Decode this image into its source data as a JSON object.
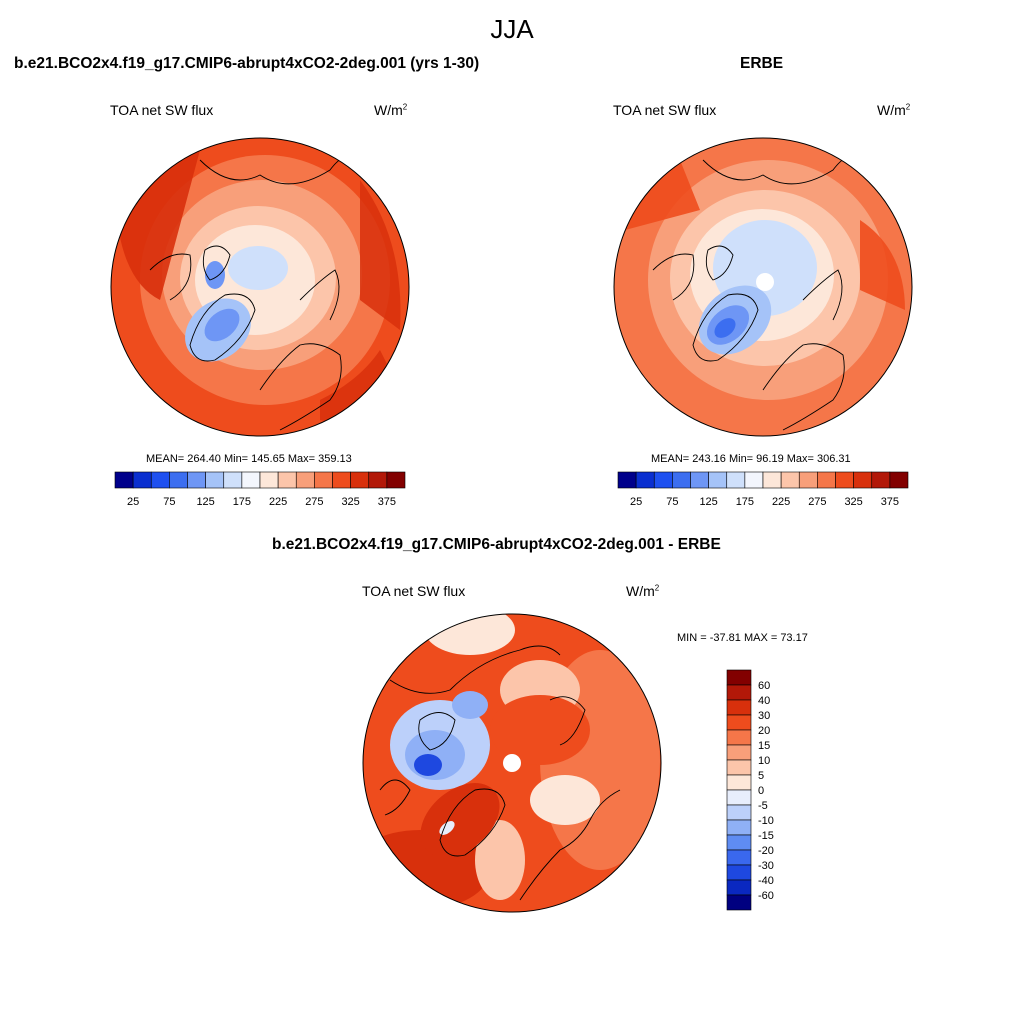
{
  "title": "JJA",
  "panels": {
    "left": {
      "title": "b.e21.BCO2x4.f19_g17.CMIP6-abrupt4xCO2-2deg.001 (yrs 1-30)",
      "variable": "TOA net SW flux",
      "units": "W/m",
      "units_sup": "2",
      "stats": "MEAN= 264.40  Min= 145.65  Max= 359.13"
    },
    "right": {
      "title": "ERBE",
      "variable": "TOA net SW flux",
      "units": "W/m",
      "units_sup": "2",
      "stats": "MEAN= 243.16  Min=  96.19  Max= 306.31"
    },
    "diff": {
      "title": "b.e21.BCO2x4.f19_g17.CMIP6-abrupt4xCO2-2deg.001 - ERBE",
      "variable": "TOA net SW flux",
      "units": "W/m",
      "units_sup": "2",
      "stats": "MIN = -37.81 MAX =  73.17"
    }
  },
  "chart_data": [
    {
      "type": "heatmap",
      "projection": "north-polar-stereographic",
      "title": "b.e21.BCO2x4.f19_g17.CMIP6-abrupt4xCO2-2deg.001 (yrs 1-30)",
      "variable": "TOA net SW flux",
      "units": "W/m2",
      "mean": 264.4,
      "min": 145.65,
      "max": 359.13,
      "colorbar": {
        "levels": [
          25,
          50,
          75,
          100,
          125,
          150,
          175,
          200,
          225,
          250,
          275,
          300,
          325,
          350,
          375
        ],
        "tick_labels": [
          "25",
          "75",
          "125",
          "175",
          "225",
          "275",
          "325",
          "375"
        ],
        "colors": [
          "#00008b",
          "#0a2fd0",
          "#1e50f0",
          "#3c6ef0",
          "#6e96f5",
          "#a5c3f8",
          "#cfe0fb",
          "#f3f6fd",
          "#fde7d9",
          "#fcc5aa",
          "#f89f7a",
          "#f57649",
          "#ee4c1d",
          "#d8300c",
          "#b21808",
          "#820000"
        ]
      }
    },
    {
      "type": "heatmap",
      "projection": "north-polar-stereographic",
      "title": "ERBE",
      "variable": "TOA net SW flux",
      "units": "W/m2",
      "mean": 243.16,
      "min": 96.19,
      "max": 306.31,
      "colorbar": {
        "levels": [
          25,
          50,
          75,
          100,
          125,
          150,
          175,
          200,
          225,
          250,
          275,
          300,
          325,
          350,
          375
        ],
        "tick_labels": [
          "25",
          "75",
          "125",
          "175",
          "225",
          "275",
          "325",
          "375"
        ],
        "colors": [
          "#00008b",
          "#0a2fd0",
          "#1e50f0",
          "#3c6ef0",
          "#6e96f5",
          "#a5c3f8",
          "#cfe0fb",
          "#f3f6fd",
          "#fde7d9",
          "#fcc5aa",
          "#f89f7a",
          "#f57649",
          "#ee4c1d",
          "#d8300c",
          "#b21808",
          "#820000"
        ]
      }
    },
    {
      "type": "heatmap",
      "projection": "north-polar-stereographic",
      "title": "b.e21.BCO2x4.f19_g17.CMIP6-abrupt4xCO2-2deg.001 - ERBE",
      "variable": "TOA net SW flux",
      "units": "W/m2",
      "min": -37.81,
      "max": 73.17,
      "colorbar": {
        "orientation": "vertical",
        "levels": [
          60,
          40,
          30,
          20,
          15,
          10,
          5,
          0,
          -5,
          -10,
          -15,
          -20,
          -30,
          -40,
          -60
        ],
        "tick_labels": [
          "60",
          "40",
          "30",
          "20",
          "15",
          "10",
          "5",
          "0",
          "-5",
          "-10",
          "-15",
          "-20",
          "-30",
          "-40",
          "-60"
        ],
        "colors": [
          "#820000",
          "#b21808",
          "#d8300c",
          "#ee4c1d",
          "#f57649",
          "#f89f7a",
          "#fcc5aa",
          "#fde7d9",
          "#e8eefc",
          "#bcd0fa",
          "#8fb0f6",
          "#5f8cf2",
          "#3a68ee",
          "#1e48e0",
          "#0a28c0",
          "#000080"
        ]
      }
    }
  ]
}
